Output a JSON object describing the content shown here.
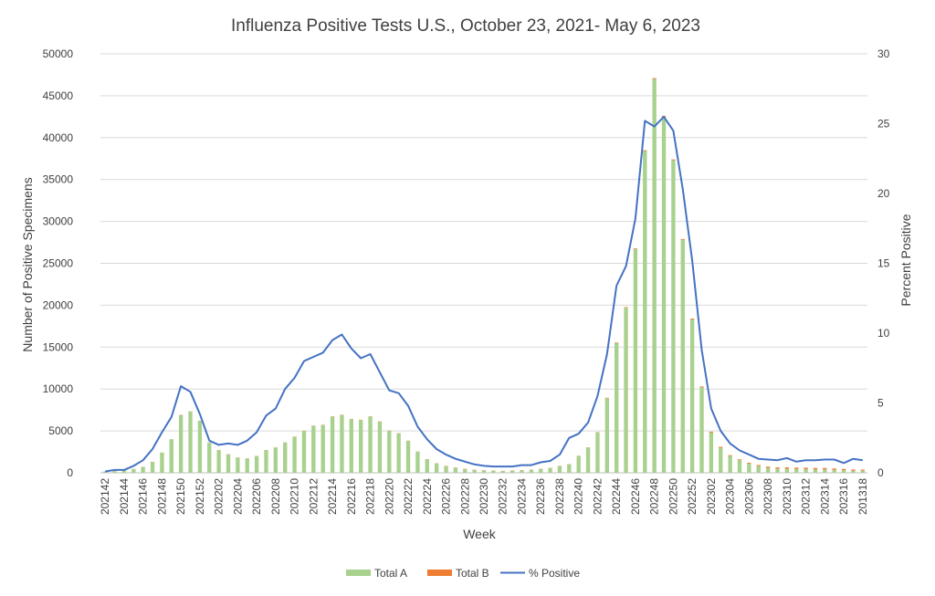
{
  "chart_data": {
    "type": "bar",
    "title": "Influenza Positive Tests U.S., October 23, 2021- May 6, 2023",
    "xlabel": "Week",
    "ylabel": "Number of Positive Specimens",
    "y2label": "Percent Positive",
    "ylim": [
      0,
      50000
    ],
    "y2lim": [
      0,
      30
    ],
    "yticks": [
      "0",
      "5000",
      "10000",
      "15000",
      "20000",
      "25000",
      "30000",
      "35000",
      "40000",
      "45000",
      "50000"
    ],
    "y2ticks": [
      "0",
      "5",
      "10",
      "15",
      "20",
      "25",
      "30"
    ],
    "categories": [
      "202142",
      "202143",
      "202144",
      "202145",
      "202146",
      "202147",
      "202148",
      "202149",
      "202150",
      "202151",
      "202152",
      "202201",
      "202202",
      "202203",
      "202204",
      "202205",
      "202206",
      "202207",
      "202208",
      "202209",
      "202210",
      "202211",
      "202212",
      "202213",
      "202214",
      "202215",
      "202216",
      "202217",
      "202218",
      "202219",
      "202220",
      "202221",
      "202222",
      "202223",
      "202224",
      "202225",
      "202226",
      "202227",
      "202228",
      "202229",
      "202230",
      "202231",
      "202232",
      "202233",
      "202234",
      "202235",
      "202236",
      "202237",
      "202238",
      "202239",
      "202240",
      "202241",
      "202242",
      "202243",
      "202244",
      "202245",
      "202246",
      "202247",
      "202248",
      "202249",
      "202250",
      "202251",
      "202252",
      "202301",
      "202302",
      "202303",
      "202304",
      "202305",
      "202306",
      "202307",
      "202308",
      "202309",
      "202310",
      "202311",
      "202312",
      "202313",
      "202314",
      "202315",
      "202316",
      "202317",
      "201318"
    ],
    "xtick_labels": [
      "202142",
      "202144",
      "202146",
      "202148",
      "202150",
      "202152",
      "202202",
      "202204",
      "202206",
      "202208",
      "202210",
      "202212",
      "202214",
      "202216",
      "202218",
      "202220",
      "202222",
      "202224",
      "202226",
      "202228",
      "202230",
      "202232",
      "202234",
      "202236",
      "202238",
      "202240",
      "202242",
      "202244",
      "202246",
      "202248",
      "202250",
      "202252",
      "202302",
      "202304",
      "202306",
      "202308",
      "202310",
      "202312",
      "202314",
      "202316",
      "201318"
    ],
    "series": [
      {
        "name": "Total A",
        "color": "#a9d18e",
        "axis": "left",
        "kind": "bar",
        "values": [
          150,
          200,
          300,
          450,
          700,
          1300,
          2400,
          4000,
          6900,
          7300,
          6200,
          3600,
          2700,
          2200,
          1800,
          1700,
          2000,
          2700,
          3000,
          3600,
          4300,
          5000,
          5600,
          5700,
          6700,
          6900,
          6400,
          6300,
          6700,
          6100,
          5000,
          4700,
          3800,
          2500,
          1600,
          1100,
          800,
          600,
          450,
          350,
          280,
          230,
          200,
          250,
          300,
          350,
          450,
          550,
          800,
          1000,
          2000,
          3000,
          4800,
          8900,
          15500,
          19700,
          26700,
          38400,
          47000,
          42500,
          37300,
          27800,
          18300,
          10200,
          4800,
          3000,
          2000,
          1500,
          1100,
          800,
          600,
          500,
          500,
          450,
          450,
          400,
          400,
          350,
          300,
          250,
          250
        ]
      },
      {
        "name": "Total B",
        "color": "#ed7d31",
        "axis": "left",
        "kind": "bar",
        "values": [
          10,
          10,
          10,
          10,
          10,
          10,
          10,
          10,
          20,
          20,
          20,
          20,
          20,
          20,
          20,
          20,
          20,
          20,
          20,
          20,
          20,
          20,
          30,
          30,
          30,
          30,
          30,
          30,
          30,
          30,
          30,
          30,
          30,
          30,
          30,
          30,
          30,
          30,
          30,
          30,
          30,
          30,
          30,
          30,
          30,
          30,
          30,
          30,
          30,
          30,
          30,
          30,
          40,
          50,
          60,
          70,
          80,
          90,
          100,
          100,
          100,
          100,
          100,
          100,
          100,
          100,
          100,
          100,
          100,
          120,
          130,
          140,
          150,
          160,
          160,
          170,
          170,
          160,
          150,
          140,
          130
        ]
      },
      {
        "name": "% Positive",
        "color": "#4472c4",
        "axis": "right",
        "kind": "line",
        "values": [
          0.1,
          0.2,
          0.2,
          0.5,
          0.9,
          1.7,
          2.9,
          4.0,
          6.2,
          5.8,
          4.2,
          2.3,
          2.0,
          2.1,
          2.0,
          2.3,
          2.9,
          4.1,
          4.6,
          6.0,
          6.8,
          8.0,
          8.3,
          8.6,
          9.5,
          9.9,
          8.9,
          8.2,
          8.5,
          7.2,
          5.9,
          5.7,
          4.8,
          3.3,
          2.4,
          1.7,
          1.3,
          1.0,
          0.8,
          0.6,
          0.5,
          0.45,
          0.45,
          0.45,
          0.55,
          0.55,
          0.75,
          0.85,
          1.3,
          2.5,
          2.8,
          3.6,
          5.5,
          8.5,
          13.4,
          14.8,
          18.2,
          25.2,
          24.8,
          25.5,
          24.5,
          20.3,
          15.2,
          8.8,
          4.6,
          3.0,
          2.1,
          1.6,
          1.3,
          1.0,
          0.95,
          0.9,
          1.05,
          0.8,
          0.9,
          0.9,
          0.95,
          0.95,
          0.7,
          1.0,
          0.9
        ]
      }
    ],
    "grid": true,
    "legend_position": "bottom"
  }
}
